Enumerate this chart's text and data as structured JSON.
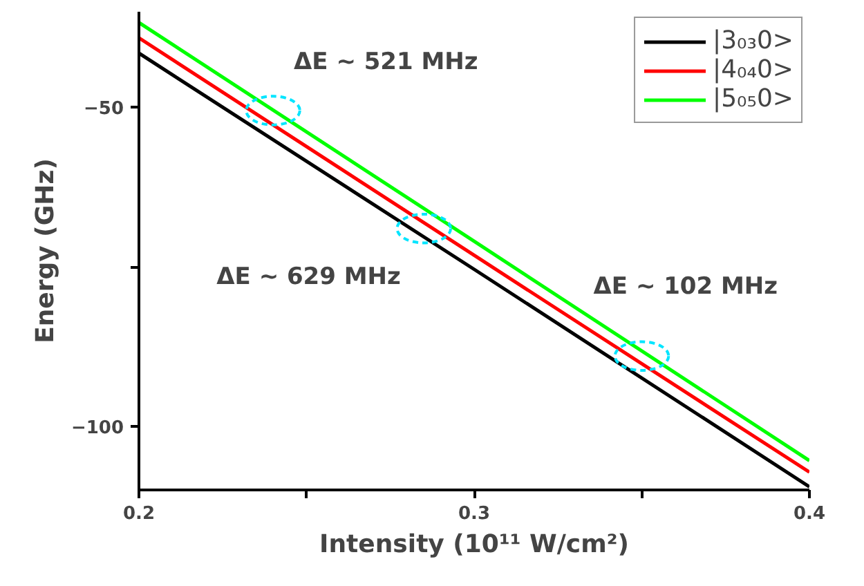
{
  "chart_data": {
    "type": "line",
    "xlabel": "Intensity (10¹¹ W/cm²)",
    "ylabel": "Energy (GHz)",
    "x": [
      0.2,
      0.3,
      0.4
    ],
    "series": [
      {
        "name": "|3₀₃0>",
        "color": "#000000",
        "values": [
          -41.5,
          -75.4,
          -109.5
        ]
      },
      {
        "name": "|4₀₄0>",
        "color": "#ff0000",
        "values": [
          -39.1,
          -73.2,
          -107.2
        ]
      },
      {
        "name": "|5₀₅0>",
        "color": "#00ff00",
        "values": [
          -36.7,
          -71.0,
          -105.4
        ]
      }
    ],
    "xlim": [
      0.2,
      0.4
    ],
    "ylim": [
      -110,
      -35
    ],
    "xticks": [
      0.2,
      {
        "value": 0.25,
        "label": null
      },
      0.3,
      {
        "value": 0.35,
        "label": null
      },
      0.4
    ],
    "yticks": [
      -50,
      {
        "value": -75,
        "label": null
      },
      -100
    ],
    "annotations": [
      {
        "text": "ΔE ~ 521 MHz",
        "x": 0.24,
        "y": -50.5
      },
      {
        "text": "ΔE ~ 629 MHz",
        "x": 0.285,
        "y": -69
      },
      {
        "text": "ΔE ~ 102 MHz",
        "x": 0.35,
        "y": -89
      }
    ],
    "legend": "top right",
    "grid": false,
    "line_style": "solid"
  }
}
